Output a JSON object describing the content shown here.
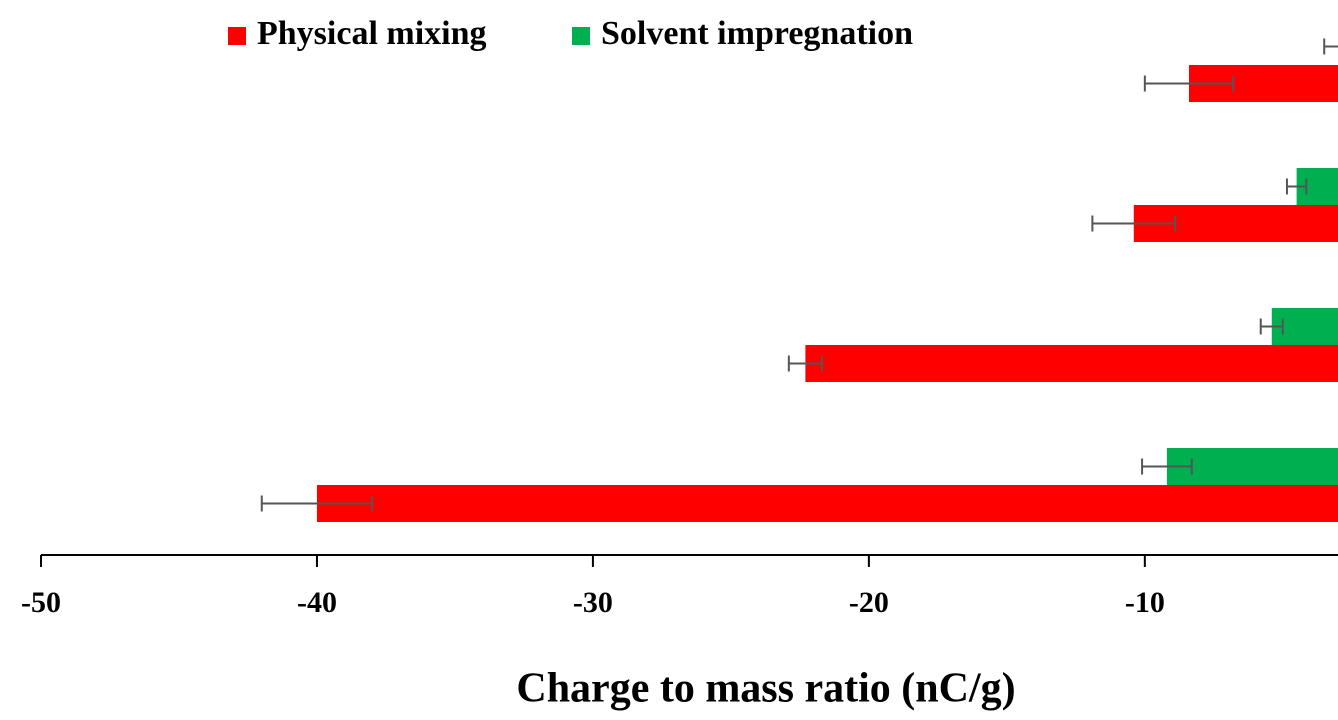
{
  "chart_data": {
    "type": "hbar",
    "xlabel": "Charge to mass ratio (nC/g)",
    "categories": [
      null,
      null,
      null,
      null
    ],
    "series": [
      {
        "name": "Physical mixing",
        "color": "#ff0000",
        "values": [
          -8.4,
          -10.4,
          -22.3,
          -40
        ],
        "errors": [
          1.6,
          1.5,
          0.6,
          2.0
        ]
      },
      {
        "name": "Solvent impregnation",
        "color": "#00b050",
        "values": [
          -3.0,
          -4.5,
          -5.4,
          -9.2
        ],
        "errors": [
          0.5,
          0.35,
          0.4,
          0.9
        ]
      }
    ],
    "xlim": [
      -50,
      -3
    ],
    "xticks": [
      -50,
      -40,
      -30,
      -20,
      -10
    ],
    "grid": false
  }
}
